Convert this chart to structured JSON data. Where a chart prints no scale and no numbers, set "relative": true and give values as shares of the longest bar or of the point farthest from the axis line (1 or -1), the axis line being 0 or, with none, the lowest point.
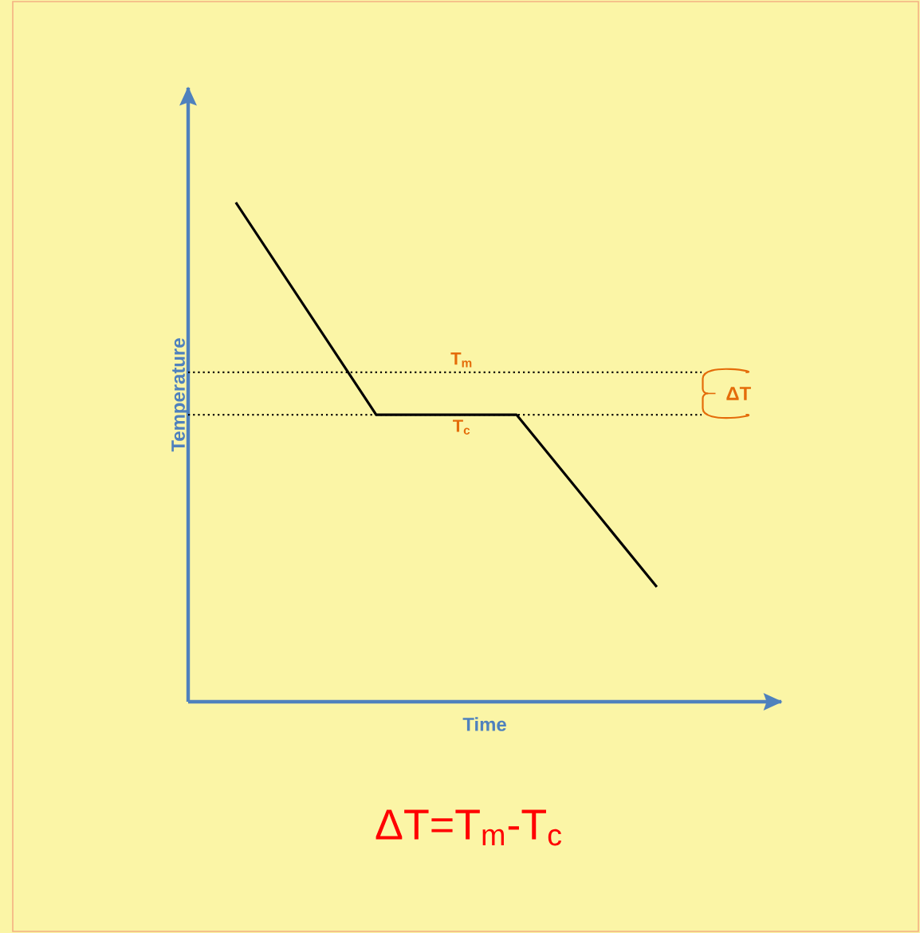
{
  "chart_data": {
    "type": "line",
    "relative": true,
    "categories": [
      null,
      null,
      null,
      null
    ],
    "xlabel": "Time",
    "ylabel": "Temperature",
    "line_style": "solid",
    "series": [
      {
        "color": "#000000",
        "values": [
          1,
          0.575,
          0.575,
          0.23
        ]
      }
    ],
    "ref_lines": [
      {
        "axis": "y",
        "value": 0.66,
        "label": "T$_{m}$",
        "color": "#000000",
        "line_style": "dotted"
      },
      {
        "axis": "y",
        "value": 0.575,
        "label": "T$_{c}$",
        "color": "#000000",
        "line_style": "dotted"
      }
    ],
    "annotations": [
      "ΔT",
      "ΔT=T$_{m}$-T$_{c}$"
    ]
  }
}
